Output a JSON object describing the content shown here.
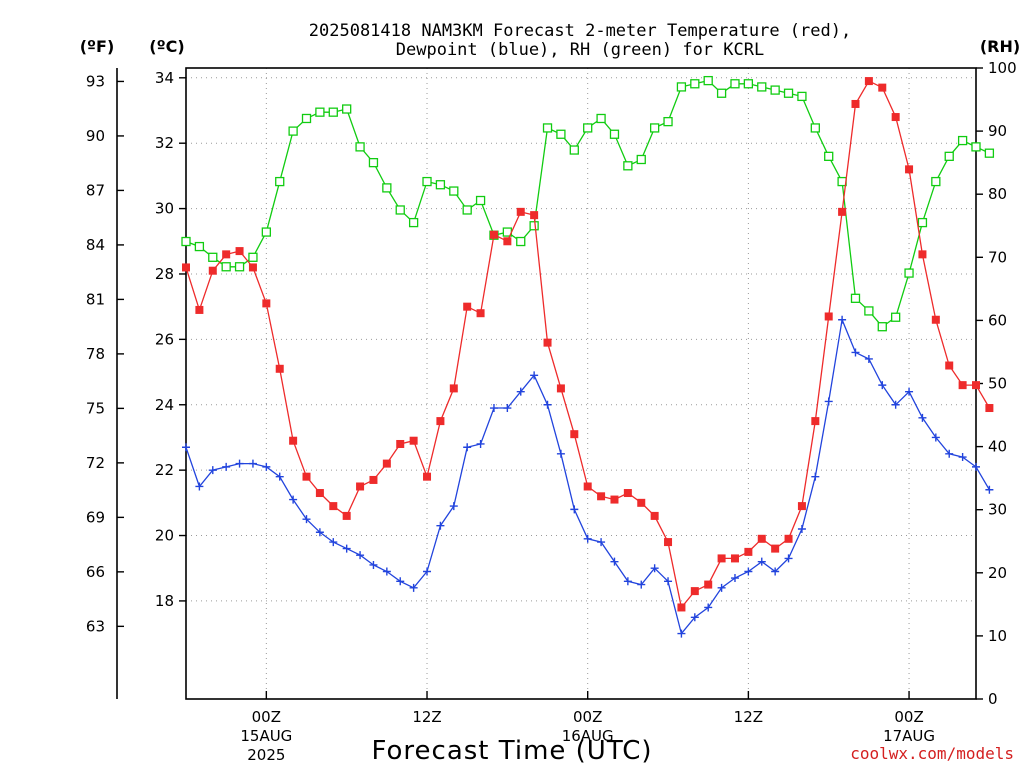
{
  "title_line1": "2025081418 NAM3KM Forecast 2-meter Temperature (red),",
  "title_line2": "Dewpoint (blue), RH (green) for KCRL",
  "unit_f": "(ºF)",
  "unit_c": "(ºC)",
  "unit_rh": "(RH)",
  "xlabel": "Forecast Time (UTC)",
  "credit": "coolwx.com/models",
  "colors": {
    "temperature": "#ee2b2b",
    "dewpoint": "#2244dd",
    "rh": "#11cc11"
  },
  "chart_data": {
    "type": "line",
    "x_unit": "forecast hours from 2025-08-14 18Z (hourly)",
    "x_range": [
      0,
      59
    ],
    "x_ticks": [
      {
        "hour": 6,
        "label": "00Z",
        "sub": "15AUG",
        "sub2": "2025"
      },
      {
        "hour": 18,
        "label": "12Z",
        "sub": "",
        "sub2": ""
      },
      {
        "hour": 30,
        "label": "00Z",
        "sub": "16AUG",
        "sub2": ""
      },
      {
        "hour": 42,
        "label": "12Z",
        "sub": "",
        "sub2": ""
      },
      {
        "hour": 54,
        "label": "00Z",
        "sub": "17AUG",
        "sub2": ""
      }
    ],
    "y_left_c": {
      "range": [
        15,
        34.3
      ],
      "ticks": [
        18,
        20,
        22,
        24,
        26,
        28,
        30,
        32,
        34
      ]
    },
    "y_left_f": {
      "ticks": [
        63,
        66,
        69,
        72,
        75,
        78,
        81,
        84,
        87,
        90,
        93
      ]
    },
    "y_right_rh": {
      "range": [
        0,
        100
      ],
      "ticks": [
        0,
        10,
        20,
        30,
        40,
        50,
        60,
        70,
        80,
        90,
        100
      ]
    },
    "grid": true,
    "series": [
      {
        "name": "2-meter Temperature (°C)",
        "marker": "filled-square",
        "values": [
          28.2,
          26.9,
          28.1,
          28.6,
          28.7,
          28.2,
          27.1,
          25.1,
          22.9,
          21.8,
          21.3,
          20.9,
          20.6,
          21.5,
          21.7,
          22.2,
          22.8,
          22.9,
          21.8,
          23.5,
          24.5,
          27.0,
          26.8,
          29.2,
          29.0,
          29.9,
          29.8,
          25.9,
          24.5,
          23.1,
          21.5,
          21.2,
          21.1,
          21.3,
          21.0,
          20.6,
          19.8,
          17.8,
          18.3,
          18.5,
          19.3,
          19.3,
          19.5,
          19.9,
          19.6,
          19.9,
          20.9,
          23.5,
          26.7,
          29.9,
          33.2,
          33.9,
          33.7,
          32.8,
          31.2,
          28.6,
          26.6,
          25.2,
          24.6,
          24.6,
          23.9
        ]
      },
      {
        "name": "2-meter Dewpoint (°C)",
        "marker": "plus",
        "values": [
          22.7,
          21.5,
          22.0,
          22.1,
          22.2,
          22.2,
          22.1,
          21.8,
          21.1,
          20.5,
          20.1,
          19.8,
          19.6,
          19.4,
          19.1,
          18.9,
          18.6,
          18.4,
          18.9,
          20.3,
          20.9,
          22.7,
          22.8,
          23.9,
          23.9,
          24.4,
          24.9,
          24.0,
          22.5,
          20.8,
          19.9,
          19.8,
          19.2,
          18.6,
          18.5,
          19.0,
          18.6,
          17.0,
          17.5,
          17.8,
          18.4,
          18.7,
          18.9,
          19.2,
          18.9,
          19.3,
          20.2,
          21.8,
          24.1,
          26.6,
          25.6,
          25.4,
          24.6,
          24.0,
          24.4,
          23.6,
          23.0,
          22.5,
          22.4,
          22.1,
          21.4
        ]
      },
      {
        "name": "Relative Humidity (%)",
        "marker": "open-square",
        "values": [
          72.5,
          71.7,
          70.0,
          68.5,
          68.5,
          70.0,
          74.0,
          82.0,
          90.0,
          92.0,
          93.0,
          93.0,
          93.5,
          87.5,
          85.0,
          81.0,
          77.5,
          75.5,
          82.0,
          81.5,
          80.5,
          77.5,
          79.0,
          73.5,
          74.0,
          72.5,
          75.0,
          90.5,
          89.5,
          87.0,
          90.5,
          92.0,
          89.5,
          84.5,
          85.5,
          90.5,
          91.5,
          97.0,
          97.5,
          98.0,
          96.0,
          97.5,
          97.5,
          97.0,
          96.5,
          96.0,
          95.5,
          90.5,
          86.0,
          82.0,
          63.5,
          61.5,
          59.0,
          60.5,
          67.5,
          75.5,
          82.0,
          86.0,
          88.5,
          87.5,
          86.5
        ]
      }
    ]
  }
}
